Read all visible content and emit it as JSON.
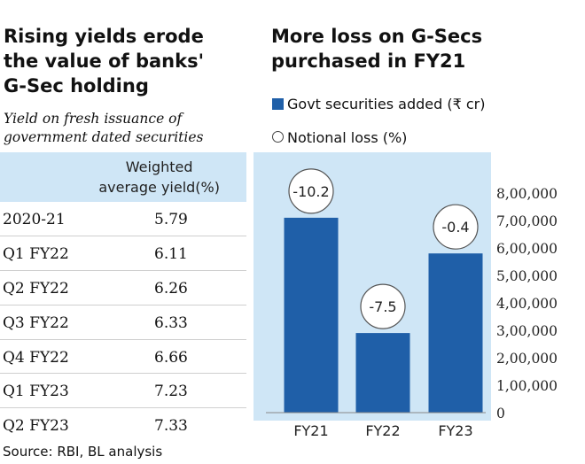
{
  "left": {
    "title_lines": [
      "Rising yields erode",
      "the value of banks'",
      "G-Sec holding"
    ],
    "subtitle_lines": [
      "Yield on fresh issuance of",
      "government dated securities"
    ],
    "column_header_lines": [
      "Weighted",
      "average yield(%)"
    ],
    "rows": [
      {
        "label": "2020-21",
        "value": "5.79"
      },
      {
        "label": "Q1 FY22",
        "value": "6.11"
      },
      {
        "label": "Q2 FY22",
        "value": "6.26"
      },
      {
        "label": "Q3 FY22",
        "value": "6.33"
      },
      {
        "label": "Q4 FY22",
        "value": "6.66"
      },
      {
        "label": "Q1 FY23",
        "value": "7.23"
      },
      {
        "label": "Q2 FY23",
        "value": "7.33"
      }
    ]
  },
  "right": {
    "title_lines": [
      "More loss on G-Secs",
      "purchased in FY21"
    ],
    "legend": {
      "bars": "Govt securities added (₹ cr)",
      "loss": "Notional loss (%)"
    }
  },
  "source": "Source: RBI, BL analysis",
  "colors": {
    "bar": "#1f5fa8",
    "panel_bg": "#cfe6f6"
  },
  "chart_data": [
    {
      "type": "table",
      "title": "Rising yields erode the value of banks' G-Sec holding",
      "subtitle": "Yield on fresh issuance of government dated securities",
      "columns": [
        "",
        "Weighted average yield(%)"
      ],
      "rows": [
        [
          "2020-21",
          5.79
        ],
        [
          "Q1 FY22",
          6.11
        ],
        [
          "Q2 FY22",
          6.26
        ],
        [
          "Q3 FY22",
          6.33
        ],
        [
          "Q4 FY22",
          6.66
        ],
        [
          "Q1 FY23",
          7.23
        ],
        [
          "Q2 FY23",
          7.33
        ]
      ]
    },
    {
      "type": "bar",
      "title": "More loss on G-Secs purchased in FY21",
      "categories": [
        "FY21",
        "FY22",
        "FY23"
      ],
      "series": [
        {
          "name": "Govt securities added (₹ cr)",
          "values": [
            710000,
            290000,
            580000
          ]
        }
      ],
      "annotations": {
        "name": "Notional loss (%)",
        "labels": [
          "-10.2",
          "-7.5",
          "-0.4"
        ]
      },
      "ylim": [
        0,
        800000
      ],
      "yticks": [
        0,
        100000,
        200000,
        300000,
        400000,
        500000,
        600000,
        700000,
        800000
      ],
      "ytick_labels": [
        "0",
        "1,00,000",
        "2,00,000",
        "3,00,000",
        "4,00,000",
        "5,00,000",
        "6,00,000",
        "7,00,000",
        "8,00,000"
      ],
      "yaxis_side": "right",
      "grid": false
    }
  ]
}
